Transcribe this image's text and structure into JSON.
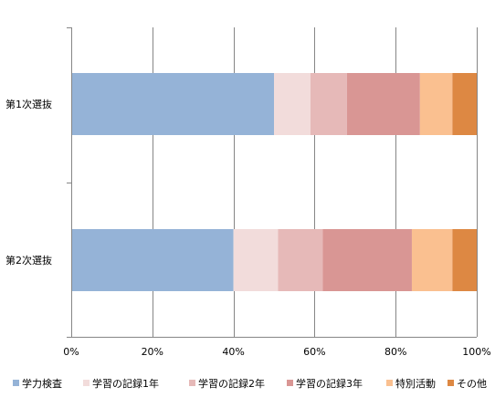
{
  "chart_data": {
    "type": "bar",
    "orientation": "horizontal",
    "stacked": "percent",
    "categories": [
      "第1次選抜",
      "第2次選抜"
    ],
    "series": [
      {
        "name": "学力検査",
        "values": [
          50,
          40
        ],
        "color": "#95B3D7"
      },
      {
        "name": "学習の記録1年",
        "values": [
          9,
          11
        ],
        "color": "#F2DCDB"
      },
      {
        "name": "学習の記録2年",
        "values": [
          9,
          11
        ],
        "color": "#E6B9B8"
      },
      {
        "name": "学習の記録3年",
        "values": [
          18,
          22
        ],
        "color": "#D99694"
      },
      {
        "name": "特別活動",
        "values": [
          8,
          10
        ],
        "color": "#FAC090"
      },
      {
        "name": "その他",
        "values": [
          6,
          6
        ],
        "color": "#DD8843"
      }
    ],
    "x_ticks": [
      "0%",
      "20%",
      "40%",
      "60%",
      "80%",
      "100%"
    ],
    "xlim": [
      0,
      100
    ],
    "grid": "vertical",
    "legend_position": "bottom",
    "title": "",
    "xlabel": "",
    "ylabel": ""
  }
}
